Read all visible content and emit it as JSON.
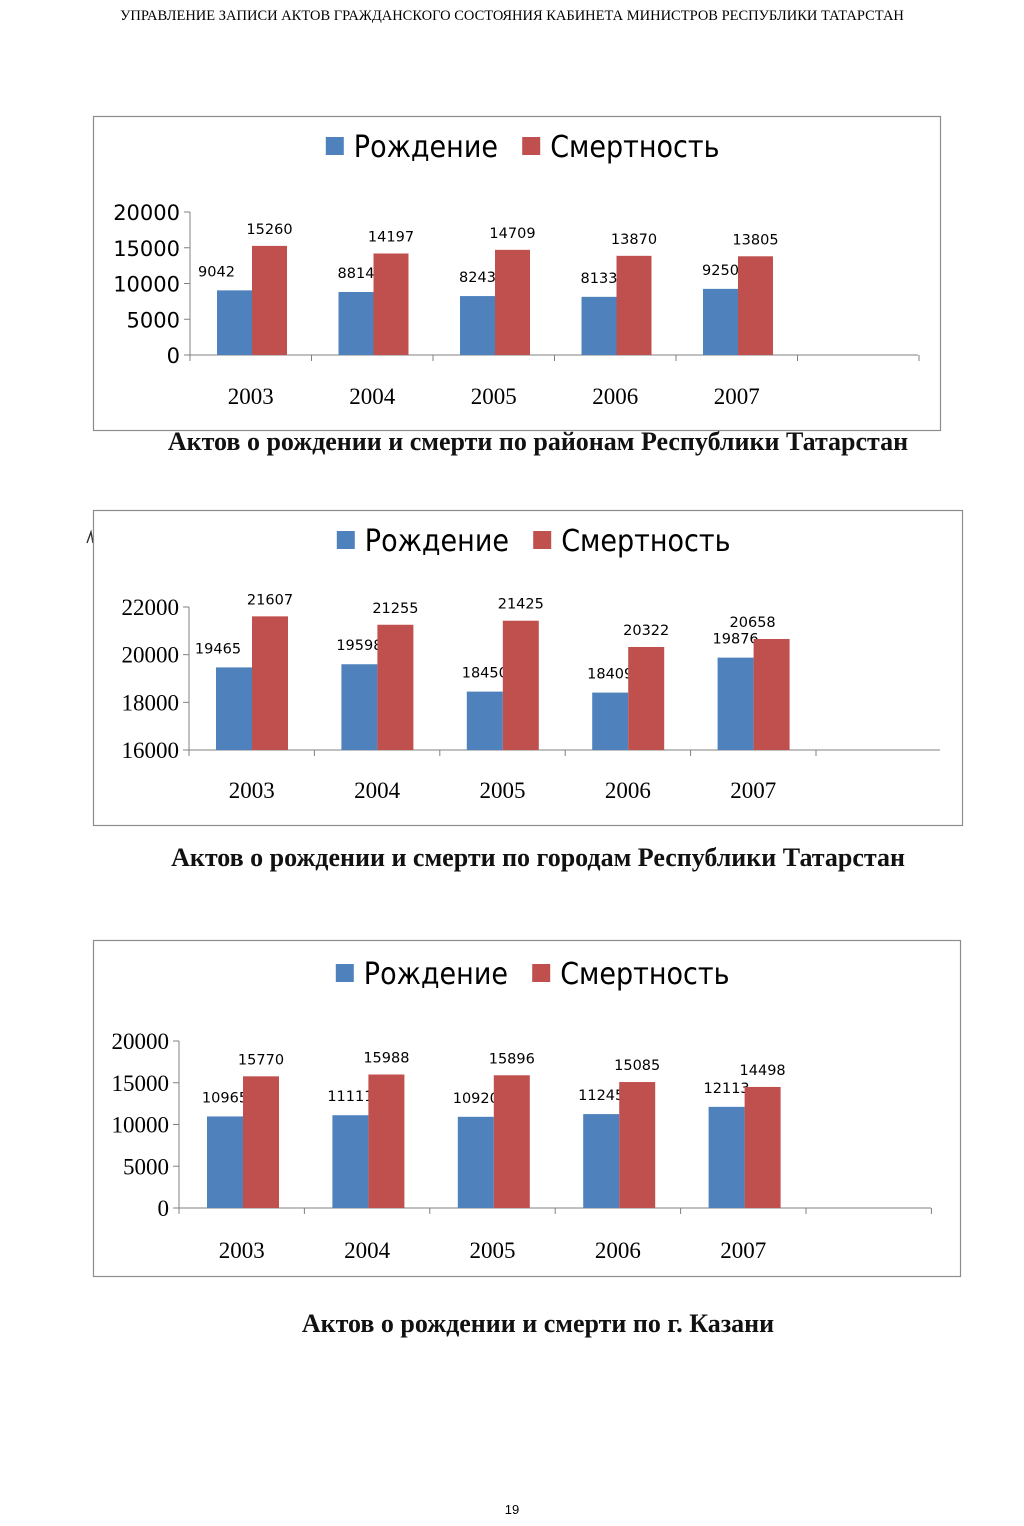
{
  "page": {
    "header": "УПРАВЛЕНИЕ ЗАПИСИ АКТОВ ГРАЖДАНСКОГО СОСТОЯНИЯ КАБИНЕТА МИНИСТРОВ РЕСПУБЛИКИ ТАТАРСТАН",
    "page_number": "19"
  },
  "captions": [
    "Актов о рождении и смерти по районам Республики Татарстан",
    "Актов о рождении и смерти по городам Республики Татарстан",
    "Актов о рождении и смерти по г. Казани"
  ],
  "colors": {
    "birth": "#4F81BD",
    "death": "#C0504D",
    "axis": "#808080",
    "frame": "#8c8c8c"
  },
  "chart_data": [
    {
      "type": "bar",
      "categories": [
        "2003",
        "2004",
        "2005",
        "2006",
        "2007"
      ],
      "series": [
        {
          "name": "Рождение",
          "values": [
            9042,
            8814,
            8243,
            8133,
            9250
          ]
        },
        {
          "name": "Смертность",
          "values": [
            15260,
            14197,
            14709,
            13870,
            13805
          ]
        }
      ],
      "yticks": [
        "0",
        "5000",
        "10000",
        "15000",
        "20000"
      ],
      "ylim": [
        0,
        20000
      ],
      "legend": "top",
      "grid": false
    },
    {
      "type": "bar",
      "categories": [
        "2003",
        "2004",
        "2005",
        "2006",
        "2007"
      ],
      "series": [
        {
          "name": "Рождение",
          "values": [
            19465,
            19598,
            18450,
            18409,
            19876
          ]
        },
        {
          "name": "Смертность",
          "values": [
            21607,
            21255,
            21425,
            20322,
            20658
          ]
        }
      ],
      "yticks": [
        "16000",
        "18000",
        "20000",
        "22000"
      ],
      "ylim": [
        16000,
        22000
      ],
      "legend": "top",
      "grid": false
    },
    {
      "type": "bar",
      "categories": [
        "2003",
        "2004",
        "2005",
        "2006",
        "2007"
      ],
      "series": [
        {
          "name": "Рождение",
          "values": [
            10965,
            11111,
            10920,
            11245,
            12113
          ]
        },
        {
          "name": "Смертность",
          "values": [
            15770,
            15988,
            15896,
            15085,
            14498
          ]
        }
      ],
      "yticks": [
        "0",
        "5000",
        "10000",
        "15000",
        "20000"
      ],
      "ylim": [
        0,
        20000
      ],
      "legend": "top",
      "grid": false
    }
  ]
}
